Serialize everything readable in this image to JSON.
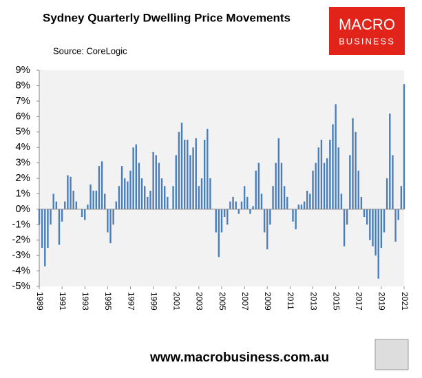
{
  "chart_data": {
    "type": "bar",
    "title": "Sydney Quarterly Dwelling Price Movements",
    "source": "Source: CoreLogic",
    "logo": [
      "MACRO",
      "BUSINESS"
    ],
    "footer": "www.macrobusiness.com.au",
    "color": "#4a7ebb",
    "x": [
      1989,
      1989.25,
      1989.5,
      1989.75,
      1990,
      1990.25,
      1990.5,
      1990.75,
      1991,
      1991.25,
      1991.5,
      1991.75,
      1992,
      1992.25,
      1992.5,
      1992.75,
      1993,
      1993.25,
      1993.5,
      1993.75,
      1994,
      1994.25,
      1994.5,
      1994.75,
      1995,
      1995.25,
      1995.5,
      1995.75,
      1996,
      1996.25,
      1996.5,
      1996.75,
      1997,
      1997.25,
      1997.5,
      1997.75,
      1998,
      1998.25,
      1998.5,
      1998.75,
      1999,
      1999.25,
      1999.5,
      1999.75,
      2000,
      2000.25,
      2000.5,
      2000.75,
      2001,
      2001.25,
      2001.5,
      2001.75,
      2002,
      2002.25,
      2002.5,
      2002.75,
      2003,
      2003.25,
      2003.5,
      2003.75,
      2004,
      2004.25,
      2004.5,
      2004.75,
      2005,
      2005.25,
      2005.5,
      2005.75,
      2006,
      2006.25,
      2006.5,
      2006.75,
      2007,
      2007.25,
      2007.5,
      2007.75,
      2008,
      2008.25,
      2008.5,
      2008.75,
      2009,
      2009.25,
      2009.5,
      2009.75,
      2010,
      2010.25,
      2010.5,
      2010.75,
      2011,
      2011.25,
      2011.5,
      2011.75,
      2012,
      2012.25,
      2012.5,
      2012.75,
      2013,
      2013.25,
      2013.5,
      2013.75,
      2014,
      2014.25,
      2014.5,
      2014.75,
      2015,
      2015.25,
      2015.5,
      2015.75,
      2016,
      2016.25,
      2016.5,
      2016.75,
      2017,
      2017.25,
      2017.5,
      2017.75,
      2018,
      2018.25,
      2018.5,
      2018.75,
      2019,
      2019.25,
      2019.5,
      2019.75,
      2020,
      2020.25,
      2020.5,
      2020.75,
      2021
    ],
    "values": [
      -1,
      -2.5,
      -3.7,
      -2.5,
      -1,
      1,
      0.5,
      -2.3,
      -0.8,
      0.5,
      2.2,
      2.1,
      1.2,
      0.5,
      0,
      -0.5,
      -0.7,
      0.3,
      1.6,
      1.2,
      1.2,
      2.8,
      3.1,
      1.0,
      -1.5,
      -2.2,
      -1,
      0.5,
      1.5,
      2.8,
      2.0,
      1.8,
      2.5,
      4.0,
      4.2,
      3.0,
      2.0,
      1.5,
      0.8,
      1.2,
      3.7,
      3.5,
      3.0,
      2.0,
      1.5,
      0.8,
      0,
      1.5,
      3.5,
      5.0,
      5.6,
      4.5,
      4.5,
      3.5,
      4.0,
      4.6,
      1.5,
      2.0,
      4.5,
      5.2,
      2.0,
      0,
      -1.5,
      -3.1,
      -1.5,
      -0.5,
      -1.0,
      0.5,
      0.8,
      0.5,
      -0.3,
      0.5,
      1.5,
      0.8,
      -0.3,
      0.2,
      2.5,
      3.0,
      1.0,
      -1.5,
      -2.6,
      -1.0,
      1.5,
      3.0,
      4.6,
      3.0,
      1.5,
      0.8,
      0,
      -0.8,
      -1.3,
      0.3,
      0.3,
      0.5,
      1.2,
      1.0,
      2.5,
      3.0,
      4.0,
      4.5,
      3.0,
      3.3,
      4.5,
      5.5,
      6.8,
      4.0,
      1.0,
      -2.4,
      -1.0,
      3.5,
      5.9,
      5.0,
      2.5,
      0.8,
      -0.5,
      -1.0,
      -2.0,
      -2.4,
      -3.0,
      -4.5,
      -2.5,
      -1.5,
      2.0,
      6.2,
      3.5,
      -2.1,
      -0.7,
      1.5,
      8.1
    ],
    "xlim": [
      1989,
      2021
    ],
    "xticks": [
      1989,
      1991,
      1993,
      1995,
      1997,
      1999,
      2001,
      2003,
      2005,
      2007,
      2009,
      2011,
      2013,
      2015,
      2017,
      2019,
      2021
    ],
    "ylim": [
      -5,
      9
    ],
    "yticks": [
      {
        "value": -5,
        "label": "-5%"
      },
      {
        "value": -4,
        "label": "-4%"
      },
      {
        "value": -3,
        "label": "-3%"
      },
      {
        "value": -2,
        "label": "-2%"
      },
      {
        "value": -1,
        "label": "-1%"
      },
      {
        "value": 0,
        "label": "0%"
      },
      {
        "value": 1,
        "label": "1%"
      },
      {
        "value": 2,
        "label": "2%"
      },
      {
        "value": 3,
        "label": "3%"
      },
      {
        "value": 4,
        "label": "4%"
      },
      {
        "value": 5,
        "label": "5%"
      },
      {
        "value": 6,
        "label": "6%"
      },
      {
        "value": 7,
        "label": "7%"
      },
      {
        "value": 8,
        "label": "8%"
      },
      {
        "value": 9,
        "label": "9%"
      }
    ]
  }
}
